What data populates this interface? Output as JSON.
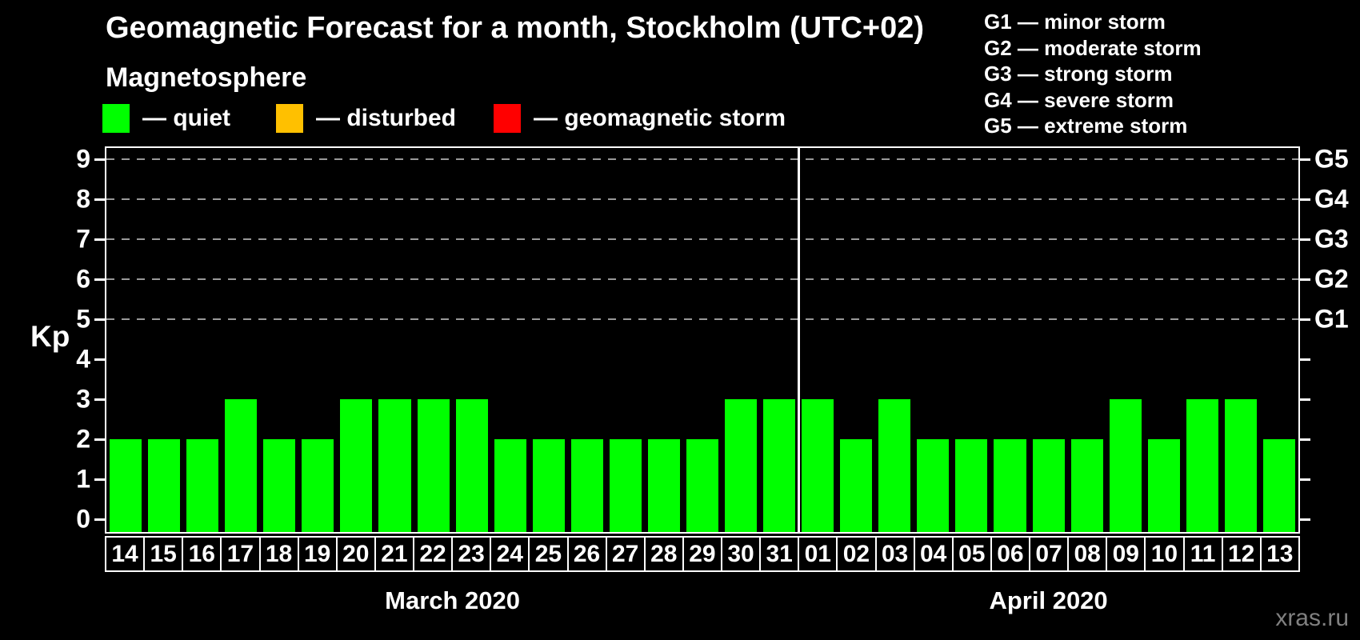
{
  "title": "Geomagnetic Forecast for a month, Stockholm (UTC+02)",
  "magnetosphere_legend": {
    "heading": "Magnetosphere",
    "items": [
      {
        "label": "— quiet",
        "color": "#00ff00"
      },
      {
        "label": "— disturbed",
        "color": "#ffc000"
      },
      {
        "label": "— geomagnetic storm",
        "color": "#ff0000"
      }
    ]
  },
  "storm_scale_legend": [
    "G1 — minor storm",
    "G2 — moderate storm",
    "G3 — strong storm",
    "G4 — severe storm",
    "G5 — extreme storm"
  ],
  "watermark": "xras.ru",
  "chart_data": {
    "type": "bar",
    "ylabel": "Kp",
    "ylim": [
      0,
      9
    ],
    "y_ticks": [
      0,
      1,
      2,
      3,
      4,
      5,
      6,
      7,
      8,
      9
    ],
    "right_axis_labels": [
      {
        "kp": 5,
        "label": "G1"
      },
      {
        "kp": 6,
        "label": "G2"
      },
      {
        "kp": 7,
        "label": "G3"
      },
      {
        "kp": 8,
        "label": "G4"
      },
      {
        "kp": 9,
        "label": "G5"
      }
    ],
    "grid_levels": [
      5,
      6,
      7,
      8,
      9
    ],
    "colors": {
      "quiet": "#00ff00",
      "disturbed": "#ffc000",
      "storm": "#ff0000"
    },
    "color_thresholds": {
      "quiet_max_kp": 3,
      "disturbed_kp": 4,
      "storm_min_kp": 5
    },
    "series": [
      {
        "month": "March 2020",
        "days": [
          "14",
          "15",
          "16",
          "17",
          "18",
          "19",
          "20",
          "21",
          "22",
          "23",
          "24",
          "25",
          "26",
          "27",
          "28",
          "29",
          "30",
          "31"
        ],
        "values": [
          2,
          2,
          2,
          3,
          2,
          2,
          3,
          3,
          3,
          3,
          2,
          2,
          2,
          2,
          2,
          2,
          3,
          3
        ]
      },
      {
        "month": "April 2020",
        "days": [
          "01",
          "02",
          "03",
          "04",
          "05",
          "06",
          "07",
          "08",
          "09",
          "10",
          "11",
          "12",
          "13"
        ],
        "values": [
          3,
          2,
          3,
          2,
          2,
          2,
          2,
          2,
          3,
          2,
          3,
          3,
          2
        ]
      }
    ]
  }
}
